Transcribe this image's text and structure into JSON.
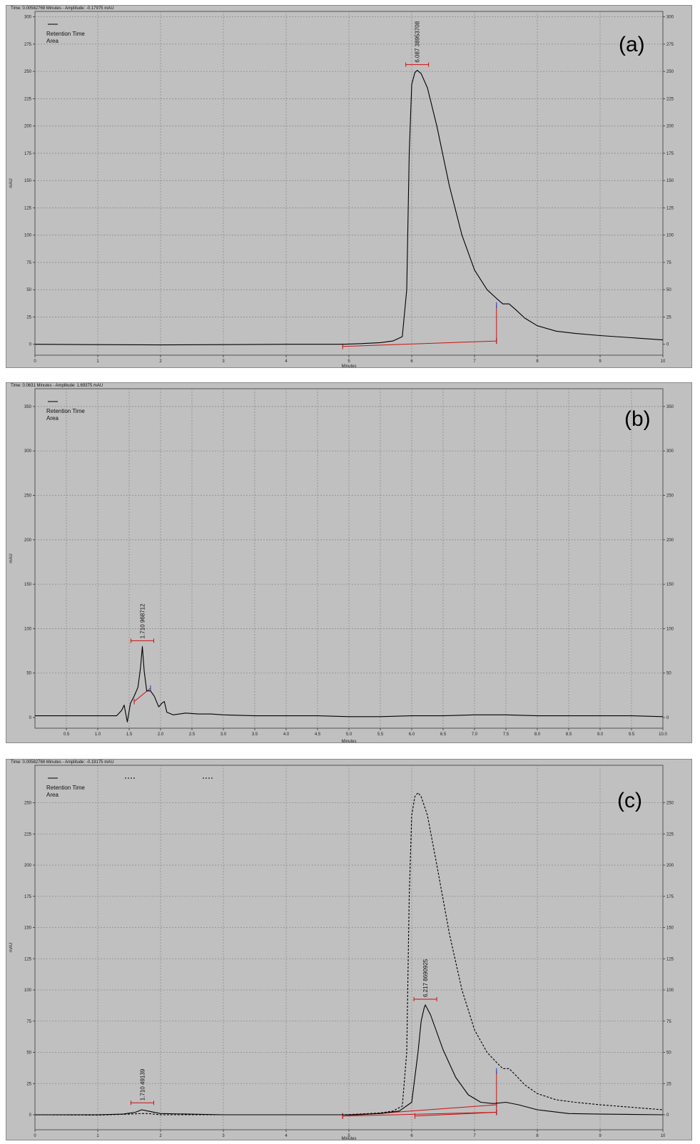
{
  "chart_data": [
    {
      "type": "line",
      "panel_tag": "(a)",
      "header": "Time:  0.00582769 Minutes - Amplitude:  -0.17975 mAU",
      "legend": [
        "Retention Time",
        "Area"
      ],
      "xlabel": "Minutes",
      "ylabel": "mAU",
      "xlim": [
        0,
        10
      ],
      "ylim": [
        -10,
        305
      ],
      "x_ticks": [
        "0",
        "1",
        "2",
        "3",
        "4",
        "5",
        "6",
        "7",
        "8",
        "9",
        "10"
      ],
      "y_ticks": [
        "0",
        "25",
        "50",
        "75",
        "100",
        "125",
        "150",
        "175",
        "200",
        "225",
        "250",
        "275",
        "300"
      ],
      "series": [
        {
          "style": "solid",
          "x": [
            0,
            1,
            2,
            3,
            4,
            4.9,
            5.2,
            5.5,
            5.7,
            5.85,
            5.92,
            5.96,
            6.0,
            6.05,
            6.087,
            6.15,
            6.25,
            6.4,
            6.6,
            6.8,
            7.0,
            7.2,
            7.35,
            7.45,
            7.55,
            7.65,
            7.8,
            8.0,
            8.3,
            8.6,
            9.0,
            9.5,
            10
          ],
          "y": [
            0,
            -0.3,
            -0.6,
            -0.3,
            0,
            0,
            0.6,
            1.5,
            3,
            7,
            50,
            175,
            238,
            249,
            251,
            248,
            235,
            200,
            145,
            100,
            68,
            50,
            42,
            37,
            37,
            32,
            24,
            17,
            12,
            10,
            8,
            6,
            4
          ]
        }
      ],
      "peaks": [
        {
          "label": "6.087  38953708",
          "x": 6.087,
          "y": 251
        }
      ],
      "baselines": [
        {
          "x": [
            4.9,
            7.35
          ],
          "y": [
            -2,
            3
          ]
        },
        {
          "x": [
            7.35,
            7.35
          ],
          "y": [
            3,
            36
          ]
        }
      ]
    },
    {
      "type": "line",
      "panel_tag": "(b)",
      "header": "Time:  0.0631 Minutes - Amplitude:  1.69375 mAU",
      "legend": [
        "Retention Time",
        "Area"
      ],
      "xlabel": "Minutes",
      "ylabel": "mAU",
      "xlim": [
        0,
        10
      ],
      "ylim": [
        -12,
        370
      ],
      "x_ticks": [
        "0.5",
        "1.0",
        "1.5",
        "2.0",
        "2.5",
        "3.0",
        "3.5",
        "4.0",
        "4.5",
        "5.0",
        "5.5",
        "6.0",
        "6.5",
        "7.0",
        "7.5",
        "8.0",
        "8.5",
        "9.0",
        "9.5",
        "10.0"
      ],
      "y_ticks": [
        "0",
        "50",
        "100",
        "150",
        "200",
        "250",
        "300",
        "350"
      ],
      "series": [
        {
          "style": "solid",
          "x": [
            0,
            0.5,
            1.0,
            1.3,
            1.38,
            1.42,
            1.47,
            1.52,
            1.58,
            1.64,
            1.68,
            1.71,
            1.74,
            1.78,
            1.84,
            1.9,
            1.97,
            2.02,
            2.06,
            2.1,
            2.2,
            2.4,
            2.6,
            2.8,
            3.0,
            3.5,
            4.0,
            4.5,
            5.0,
            5.5,
            6.0,
            6.5,
            7.0,
            7.5,
            8.0,
            8.5,
            9.0,
            9.5,
            10.0
          ],
          "y": [
            2,
            2,
            2,
            2,
            8,
            14,
            -5,
            16,
            24,
            34,
            55,
            80,
            52,
            30,
            30,
            24,
            12,
            16,
            18,
            6,
            3,
            5,
            4,
            4,
            3,
            2,
            2,
            2,
            1,
            1,
            2,
            2,
            3,
            3,
            2,
            2,
            2,
            2,
            1
          ]
        }
      ],
      "peaks": [
        {
          "label": "1.710  968712",
          "x": 1.71,
          "y": 80
        }
      ],
      "baselines": [
        {
          "x": [
            1.58,
            1.84
          ],
          "y": [
            18,
            33
          ]
        }
      ]
    },
    {
      "type": "line",
      "panel_tag": "(c)",
      "header": "Time:  0.00582769 Minutes - Amplitude:  -0.19175 mAU",
      "legend": [
        "Retention Time",
        "Area"
      ],
      "xlabel": "Minutes",
      "ylabel": "mAU",
      "xlim": [
        0,
        10
      ],
      "ylim": [
        -12,
        280
      ],
      "x_ticks": [
        "0",
        "1",
        "2",
        "3",
        "4",
        "5",
        "6",
        "7",
        "8",
        "9",
        "10"
      ],
      "y_ticks": [
        "0",
        "25",
        "50",
        "75",
        "100",
        "125",
        "150",
        "175",
        "200",
        "225",
        "250"
      ],
      "series": [
        {
          "style": "solid",
          "x": [
            0,
            1,
            1.4,
            1.6,
            1.7,
            1.8,
            2.0,
            3,
            4,
            5,
            5.5,
            5.8,
            6.0,
            6.1,
            6.15,
            6.2,
            6.217,
            6.3,
            6.5,
            6.7,
            6.9,
            7.1,
            7.3,
            7.5,
            7.7,
            8.0,
            8.5,
            9,
            10
          ],
          "y": [
            0,
            0,
            0.5,
            2,
            4,
            3,
            1,
            0,
            0,
            0,
            1,
            3,
            10,
            50,
            75,
            86,
            88,
            80,
            52,
            30,
            16,
            10,
            9,
            10,
            8,
            4,
            1,
            0.5,
            0
          ]
        },
        {
          "style": "dashed",
          "x": [
            0,
            1,
            1.5,
            1.7,
            1.8,
            2,
            3,
            4,
            4.9,
            5.2,
            5.5,
            5.7,
            5.85,
            5.92,
            5.96,
            6.0,
            6.05,
            6.1,
            6.15,
            6.25,
            6.4,
            6.6,
            6.8,
            7.0,
            7.2,
            7.35,
            7.45,
            7.55,
            7.65,
            7.8,
            8.0,
            8.3,
            8.6,
            9.0,
            9.5,
            10
          ],
          "y": [
            0,
            -0.3,
            0.5,
            1,
            1,
            0,
            0,
            0,
            0,
            0.6,
            1.5,
            3,
            7,
            50,
            175,
            240,
            255,
            258,
            255,
            240,
            200,
            145,
            100,
            68,
            50,
            42,
            37,
            37,
            32,
            24,
            17,
            12,
            10,
            8,
            6,
            4
          ]
        }
      ],
      "peaks": [
        {
          "label": "1.710  49139",
          "x": 1.71,
          "y": 5
        },
        {
          "label": "6.217  8690925",
          "x": 6.217,
          "y": 88
        }
      ],
      "baselines": [
        {
          "x": [
            4.9,
            7.35
          ],
          "y": [
            -1,
            8
          ]
        },
        {
          "x": [
            4.9,
            7.35
          ],
          "y": [
            -1,
            2
          ]
        },
        {
          "x": [
            6.05,
            7.35
          ],
          "y": [
            -1,
            2
          ]
        },
        {
          "x": [
            7.35,
            7.35
          ],
          "y": [
            2,
            35
          ]
        }
      ]
    }
  ]
}
